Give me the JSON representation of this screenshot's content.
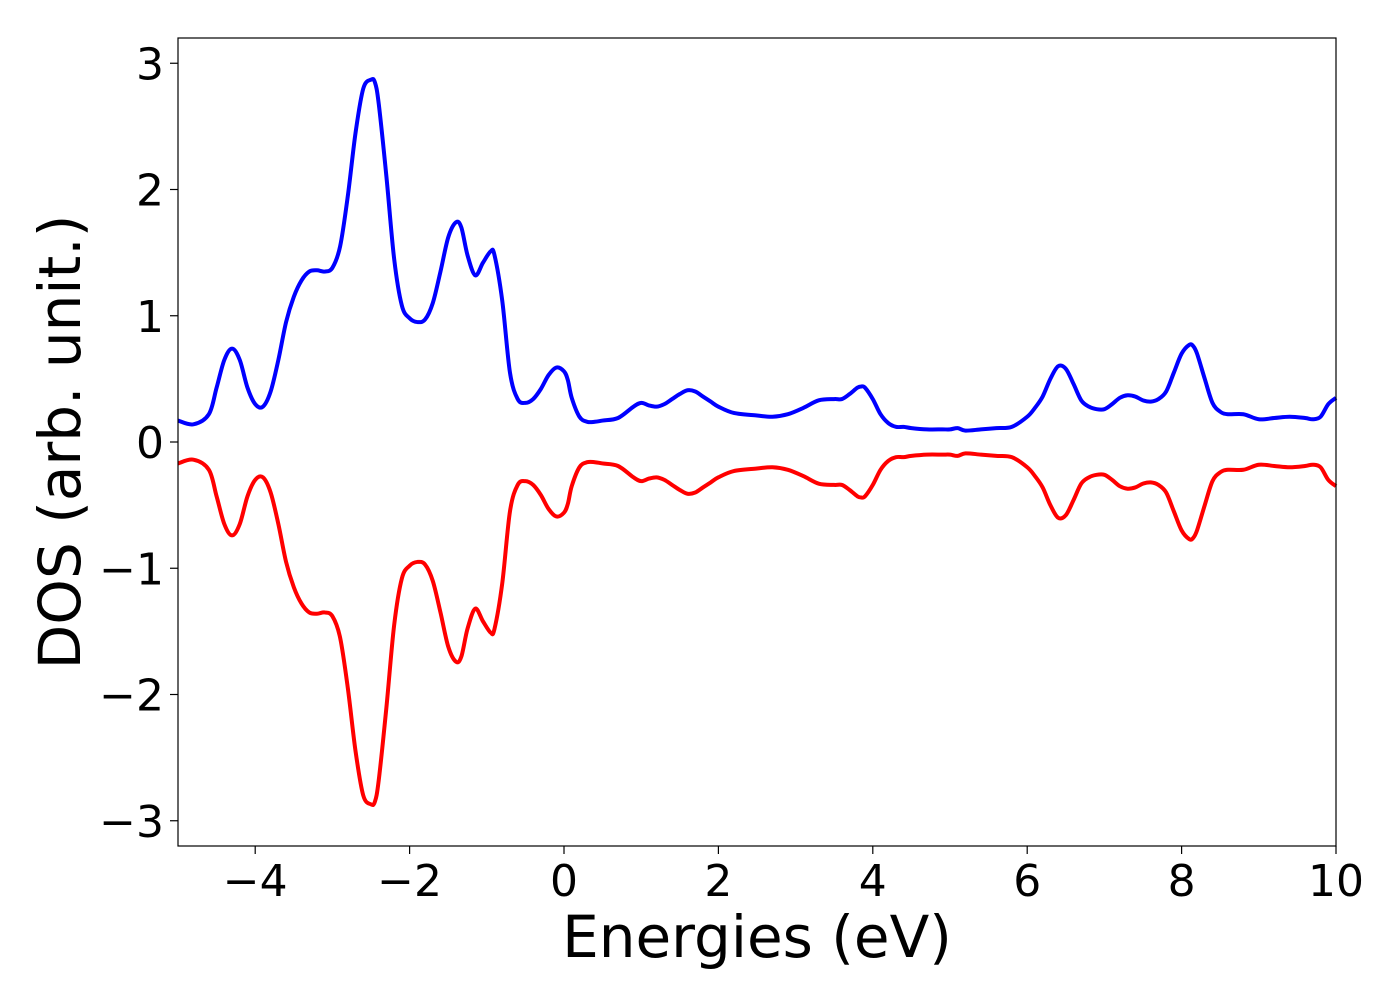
{
  "chart_data": {
    "type": "line",
    "xlabel": "Energies (eV)",
    "ylabel": "DOS (arb. unit.)",
    "xlim": [
      -5,
      10
    ],
    "ylim": [
      -3.2,
      3.2
    ],
    "xticks": [
      -4,
      -2,
      0,
      2,
      4,
      6,
      8,
      10
    ],
    "xtick_labels": [
      "−4",
      "−2",
      "0",
      "2",
      "4",
      "6",
      "8",
      "10"
    ],
    "yticks": [
      3,
      2,
      1,
      0,
      -1,
      -2,
      -3
    ],
    "ytick_labels": [
      "3",
      "2",
      "1",
      "0",
      "−1",
      "−2",
      "−3"
    ],
    "grid": false,
    "series": [
      {
        "color": "#0000ff",
        "x": [
          -5.0,
          -4.8,
          -4.6,
          -4.5,
          -4.4,
          -4.3,
          -4.2,
          -4.1,
          -4.0,
          -3.9,
          -3.8,
          -3.7,
          -3.6,
          -3.5,
          -3.4,
          -3.3,
          -3.2,
          -3.1,
          -3.0,
          -2.9,
          -2.8,
          -2.7,
          -2.6,
          -2.5,
          -2.45,
          -2.4,
          -2.3,
          -2.2,
          -2.1,
          -2.0,
          -1.9,
          -1.8,
          -1.7,
          -1.6,
          -1.5,
          -1.4,
          -1.33,
          -1.25,
          -1.15,
          -1.05,
          -0.95,
          -0.9,
          -0.8,
          -0.7,
          -0.6,
          -0.5,
          -0.4,
          -0.3,
          -0.2,
          -0.1,
          0.0,
          0.05,
          0.1,
          0.2,
          0.3,
          0.4,
          0.5,
          0.7,
          0.9,
          1.0,
          1.1,
          1.2,
          1.3,
          1.4,
          1.5,
          1.6,
          1.7,
          1.8,
          1.9,
          2.0,
          2.2,
          2.5,
          2.7,
          2.9,
          3.1,
          3.3,
          3.5,
          3.6,
          3.7,
          3.8,
          3.85,
          3.9,
          4.0,
          4.1,
          4.2,
          4.3,
          4.4,
          4.5,
          4.7,
          4.9,
          5.0,
          5.1,
          5.2,
          5.4,
          5.6,
          5.8,
          6.0,
          6.1,
          6.2,
          6.3,
          6.4,
          6.5,
          6.6,
          6.7,
          6.8,
          6.9,
          7.0,
          7.1,
          7.2,
          7.3,
          7.4,
          7.5,
          7.6,
          7.7,
          7.8,
          7.9,
          8.0,
          8.1,
          8.15,
          8.2,
          8.3,
          8.4,
          8.5,
          8.6,
          8.8,
          9.0,
          9.2,
          9.4,
          9.6,
          9.7,
          9.8,
          9.9,
          10.0
        ],
        "y": [
          0.17,
          0.14,
          0.22,
          0.43,
          0.65,
          0.74,
          0.65,
          0.43,
          0.3,
          0.28,
          0.4,
          0.65,
          0.95,
          1.15,
          1.28,
          1.35,
          1.36,
          1.35,
          1.38,
          1.55,
          1.95,
          2.45,
          2.8,
          2.87,
          2.85,
          2.68,
          2.1,
          1.45,
          1.08,
          0.98,
          0.95,
          0.97,
          1.1,
          1.35,
          1.62,
          1.74,
          1.7,
          1.48,
          1.32,
          1.42,
          1.51,
          1.48,
          1.12,
          0.55,
          0.34,
          0.31,
          0.34,
          0.42,
          0.53,
          0.59,
          0.56,
          0.49,
          0.35,
          0.2,
          0.16,
          0.16,
          0.17,
          0.19,
          0.28,
          0.31,
          0.29,
          0.28,
          0.3,
          0.34,
          0.38,
          0.41,
          0.4,
          0.36,
          0.32,
          0.28,
          0.23,
          0.21,
          0.2,
          0.22,
          0.27,
          0.33,
          0.34,
          0.34,
          0.38,
          0.43,
          0.44,
          0.43,
          0.34,
          0.22,
          0.15,
          0.12,
          0.12,
          0.11,
          0.1,
          0.1,
          0.1,
          0.11,
          0.09,
          0.1,
          0.11,
          0.12,
          0.2,
          0.27,
          0.36,
          0.5,
          0.6,
          0.58,
          0.46,
          0.33,
          0.28,
          0.26,
          0.26,
          0.3,
          0.35,
          0.37,
          0.36,
          0.33,
          0.32,
          0.34,
          0.4,
          0.55,
          0.7,
          0.77,
          0.76,
          0.7,
          0.5,
          0.31,
          0.24,
          0.22,
          0.22,
          0.18,
          0.19,
          0.2,
          0.19,
          0.18,
          0.2,
          0.3,
          0.35
        ]
      },
      {
        "color": "#ff0000",
        "x": [
          -5.0,
          -4.8,
          -4.6,
          -4.5,
          -4.4,
          -4.3,
          -4.2,
          -4.1,
          -4.0,
          -3.9,
          -3.8,
          -3.7,
          -3.6,
          -3.5,
          -3.4,
          -3.3,
          -3.2,
          -3.1,
          -3.0,
          -2.9,
          -2.8,
          -2.7,
          -2.6,
          -2.5,
          -2.45,
          -2.4,
          -2.3,
          -2.2,
          -2.1,
          -2.0,
          -1.9,
          -1.8,
          -1.7,
          -1.6,
          -1.5,
          -1.4,
          -1.33,
          -1.25,
          -1.15,
          -1.05,
          -0.95,
          -0.9,
          -0.8,
          -0.7,
          -0.6,
          -0.5,
          -0.4,
          -0.3,
          -0.2,
          -0.1,
          0.0,
          0.05,
          0.1,
          0.2,
          0.3,
          0.4,
          0.5,
          0.7,
          0.9,
          1.0,
          1.1,
          1.2,
          1.3,
          1.4,
          1.5,
          1.6,
          1.7,
          1.8,
          1.9,
          2.0,
          2.2,
          2.5,
          2.7,
          2.9,
          3.1,
          3.3,
          3.5,
          3.6,
          3.7,
          3.8,
          3.85,
          3.9,
          4.0,
          4.1,
          4.2,
          4.3,
          4.4,
          4.5,
          4.7,
          4.9,
          5.0,
          5.1,
          5.2,
          5.4,
          5.6,
          5.8,
          6.0,
          6.1,
          6.2,
          6.3,
          6.4,
          6.5,
          6.6,
          6.7,
          6.8,
          6.9,
          7.0,
          7.1,
          7.2,
          7.3,
          7.4,
          7.5,
          7.6,
          7.7,
          7.8,
          7.9,
          8.0,
          8.1,
          8.15,
          8.2,
          8.3,
          8.4,
          8.5,
          8.6,
          8.8,
          9.0,
          9.2,
          9.4,
          9.6,
          9.7,
          9.8,
          9.9,
          10.0
        ],
        "y": [
          -0.17,
          -0.14,
          -0.22,
          -0.43,
          -0.65,
          -0.74,
          -0.65,
          -0.43,
          -0.3,
          -0.28,
          -0.4,
          -0.65,
          -0.95,
          -1.15,
          -1.28,
          -1.35,
          -1.36,
          -1.35,
          -1.38,
          -1.55,
          -1.95,
          -2.45,
          -2.8,
          -2.87,
          -2.85,
          -2.68,
          -2.1,
          -1.45,
          -1.08,
          -0.98,
          -0.95,
          -0.97,
          -1.1,
          -1.35,
          -1.62,
          -1.74,
          -1.7,
          -1.48,
          -1.32,
          -1.42,
          -1.51,
          -1.48,
          -1.12,
          -0.55,
          -0.34,
          -0.31,
          -0.34,
          -0.42,
          -0.53,
          -0.59,
          -0.56,
          -0.49,
          -0.35,
          -0.2,
          -0.16,
          -0.16,
          -0.17,
          -0.19,
          -0.28,
          -0.31,
          -0.29,
          -0.28,
          -0.3,
          -0.34,
          -0.38,
          -0.41,
          -0.4,
          -0.36,
          -0.32,
          -0.28,
          -0.23,
          -0.21,
          -0.2,
          -0.22,
          -0.27,
          -0.33,
          -0.34,
          -0.34,
          -0.38,
          -0.43,
          -0.44,
          -0.43,
          -0.34,
          -0.22,
          -0.15,
          -0.12,
          -0.12,
          -0.11,
          -0.1,
          -0.1,
          -0.1,
          -0.11,
          -0.09,
          -0.1,
          -0.11,
          -0.12,
          -0.2,
          -0.27,
          -0.36,
          -0.5,
          -0.6,
          -0.58,
          -0.46,
          -0.33,
          -0.28,
          -0.26,
          -0.26,
          -0.3,
          -0.35,
          -0.37,
          -0.36,
          -0.33,
          -0.32,
          -0.34,
          -0.4,
          -0.55,
          -0.7,
          -0.77,
          -0.76,
          -0.7,
          -0.5,
          -0.31,
          -0.24,
          -0.22,
          -0.22,
          -0.18,
          -0.19,
          -0.2,
          -0.19,
          -0.18,
          -0.2,
          -0.3,
          -0.35
        ]
      }
    ]
  }
}
